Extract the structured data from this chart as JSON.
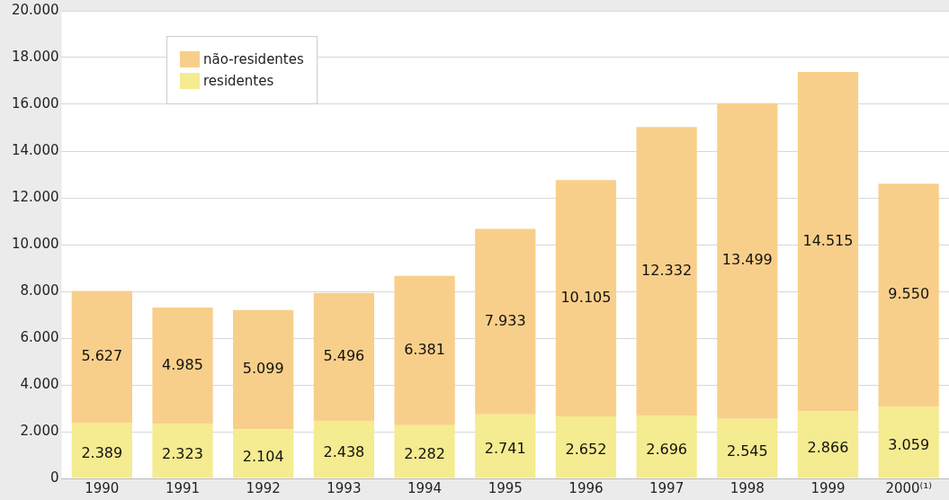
{
  "chart_data": {
    "type": "bar",
    "stacked": true,
    "legend": "top left",
    "grid": "y",
    "categories": [
      "1990",
      "1991",
      "1992",
      "1993",
      "1994",
      "1995",
      "1996",
      "1997",
      "1998",
      "1999",
      "2000⁽¹⁾"
    ],
    "series": [
      {
        "name": "residentes",
        "color": "#f5eb90",
        "values": [
          2389,
          2323,
          2104,
          2438,
          2282,
          2741,
          2652,
          2696,
          2545,
          2866,
          3059
        ],
        "value_labels": [
          "2.389",
          "2.323",
          "2.104",
          "2.438",
          "2.282",
          "2.741",
          "2.652",
          "2.696",
          "2.545",
          "2.866",
          "3.059"
        ]
      },
      {
        "name": "não-residentes",
        "color": "#f8cf8a",
        "values": [
          5627,
          4985,
          5099,
          5496,
          6381,
          7933,
          10105,
          12332,
          13499,
          14515,
          9550
        ],
        "value_labels": [
          "5.627",
          "4.985",
          "5.099",
          "5.496",
          "6.381",
          "7.933",
          "10.105",
          "12.332",
          "13.499",
          "14.515",
          "9.550"
        ]
      }
    ],
    "ylim": [
      0,
      20000
    ],
    "yticks": [
      0,
      {
        "value": 2000,
        "label": "2.000"
      },
      {
        "value": 4000,
        "label": "4.000"
      },
      {
        "value": 6000,
        "label": "6.000"
      },
      {
        "value": 8000,
        "label": "8.000"
      },
      {
        "value": 10000,
        "label": "10.000"
      },
      {
        "value": 12000,
        "label": "12.000"
      },
      {
        "value": 14000,
        "label": "14.000"
      },
      {
        "value": 16000,
        "label": "16.000"
      },
      {
        "value": 18000,
        "label": "18.000"
      },
      {
        "value": 20000,
        "label": "20.000"
      }
    ]
  }
}
